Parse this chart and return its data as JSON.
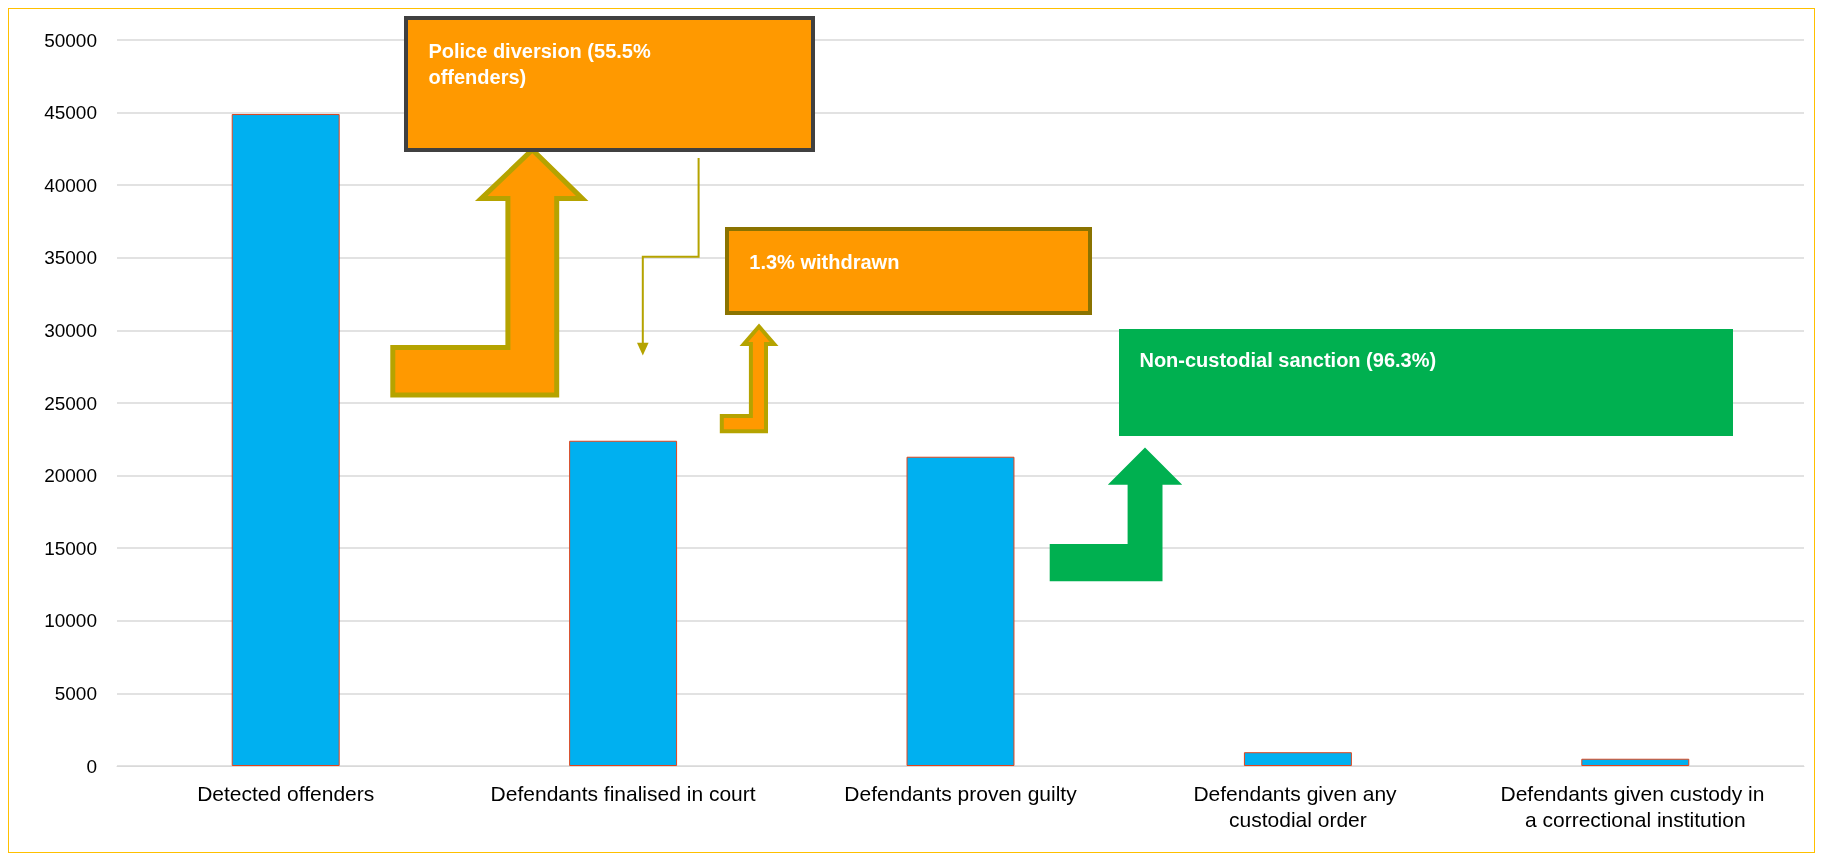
{
  "chart_data": {
    "type": "bar",
    "categories": [
      "Detected offenders",
      "Defendants finalised in court",
      "Defendants proven guilty",
      "Defendants given any custodial order",
      "Defendants given custody in a correctional institution"
    ],
    "values": [
      44900,
      22400,
      21300,
      950,
      500
    ],
    "color": "#00b0f0",
    "ylim": [
      0,
      50000
    ],
    "yticks": [
      0,
      5000,
      10000,
      15000,
      20000,
      25000,
      30000,
      35000,
      40000,
      45000,
      50000
    ],
    "grid": "y",
    "annotations": [
      "Police diversion (55.5% offenders)",
      "1.3% withdrawn",
      "Non-custodial sanction (96.3%)"
    ]
  }
}
